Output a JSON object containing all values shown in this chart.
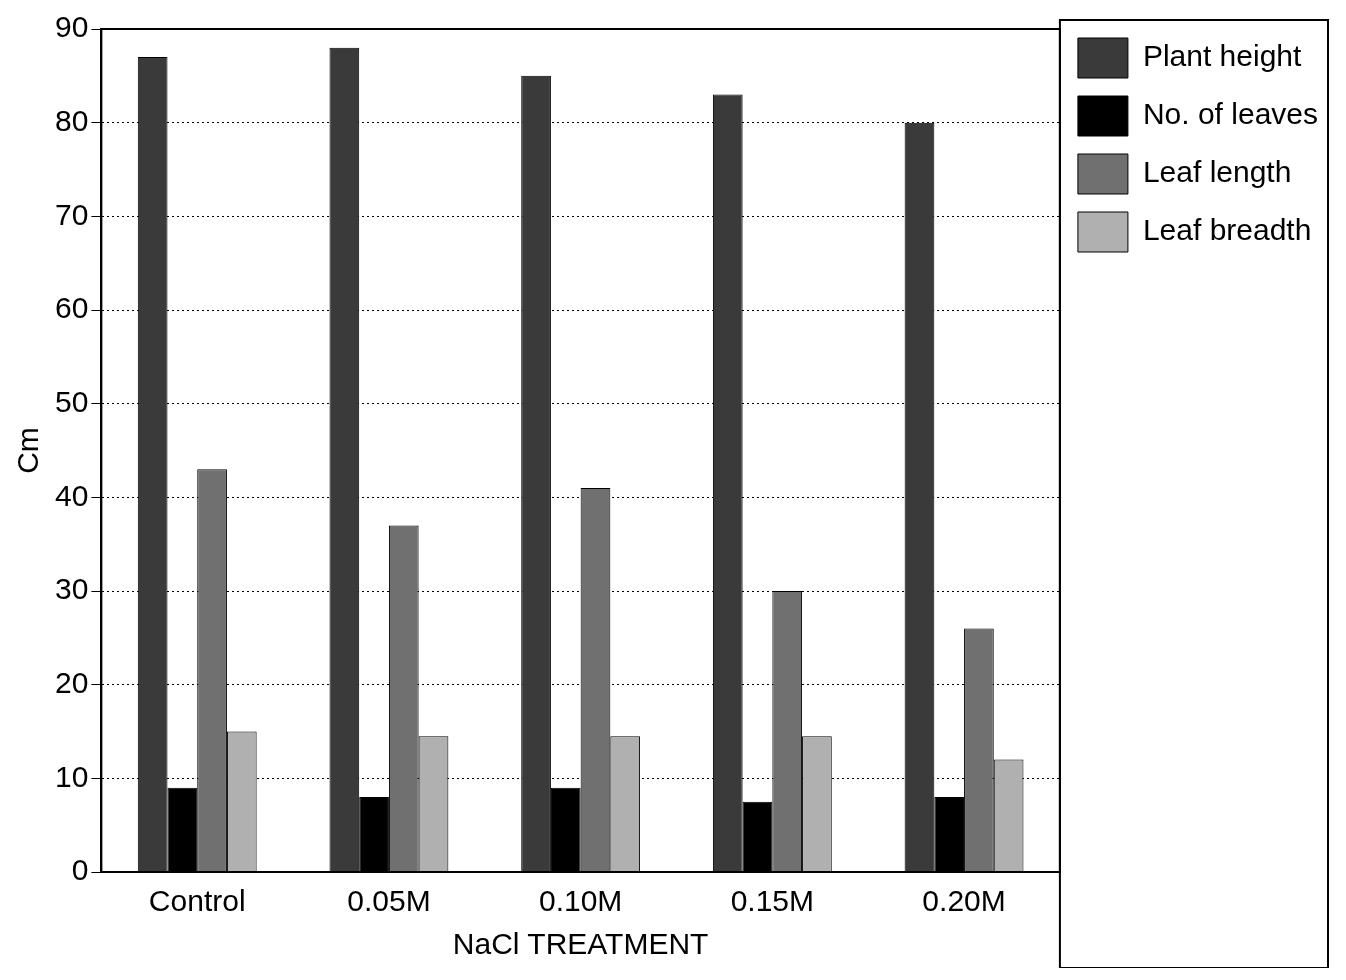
{
  "chart_data": {
    "type": "bar",
    "xlabel": "NaCl TREATMENT",
    "ylabel": "Cm",
    "categories": [
      "Control",
      "0.05M",
      "0.10M",
      "0.15M",
      "0.20M"
    ],
    "series": [
      {
        "name": "Plant height",
        "color": "#3a3a3a",
        "values": [
          87,
          88,
          85,
          83,
          80
        ]
      },
      {
        "name": "No. of leaves",
        "color": "#000000",
        "values": [
          9,
          8,
          9,
          7.5,
          8
        ]
      },
      {
        "name": "Leaf length",
        "color": "#707070",
        "values": [
          43,
          37,
          41,
          30,
          26
        ]
      },
      {
        "name": "Leaf breadth",
        "color": "#b0b0b0",
        "values": [
          15,
          14.5,
          14.5,
          14.5,
          12
        ]
      }
    ],
    "ylim": [
      0,
      90
    ],
    "yticks": [
      0,
      10,
      20,
      30,
      40,
      50,
      60,
      70,
      80,
      90
    ],
    "grid": "y",
    "legend": "top right"
  }
}
